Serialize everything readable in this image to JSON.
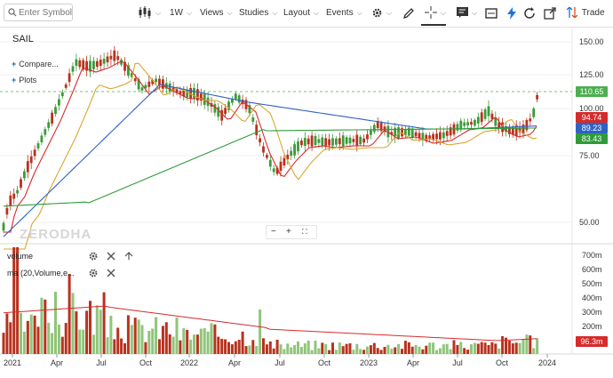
{
  "toolbar": {
    "search_placeholder": "Enter Symbol",
    "interval": "1W",
    "views": "Views",
    "studies": "Studies",
    "layout": "Layout",
    "events": "Events",
    "trade": "Trade"
  },
  "symbol": "SAIL",
  "compare_label": "Compare...",
  "plots_label": "Plots",
  "watermark": "ZERODHA",
  "volume_panel": {
    "study1": "volume",
    "study2": "ma (20,Volume,e..."
  },
  "price_axis": {
    "ticks": [
      "150.00",
      "125.00",
      "100.00",
      "75.00",
      "50.00"
    ]
  },
  "volume_axis": {
    "ticks": [
      "700m",
      "600m",
      "500m",
      "400m",
      "300m",
      "200m",
      "100m"
    ]
  },
  "x_axis": {
    "ticks": [
      "2021",
      "Apr",
      "Jul",
      "Oct",
      "2022",
      "Apr",
      "Jul",
      "Oct",
      "2023",
      "Apr",
      "Jul",
      "Oct",
      "2024"
    ]
  },
  "badges": {
    "last_price": "110.65",
    "ma_red": "94.74",
    "ma_blue": "89.23",
    "ma_green": "83.43",
    "volume_ma": "96.3m"
  },
  "colors": {
    "up": "#3a9b3a",
    "down": "#b8321e",
    "ma_red": "#d62b2b",
    "ma_orange": "#d7a72f",
    "ma_blue": "#2e63c5",
    "ma_green": "#2f9c3a",
    "last_price": "#4caf50"
  }
}
